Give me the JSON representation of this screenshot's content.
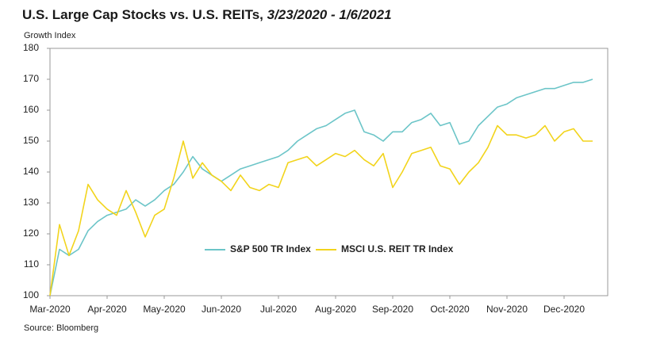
{
  "chart_data": {
    "type": "line",
    "title": "U.S. Large Cap Stocks vs. U.S. REITs, ",
    "title_dates": "3/23/2020 - 1/6/2021",
    "y_label": "Growth Index",
    "source": "Source: Bloomberg",
    "categories": [
      "Mar-2020",
      null,
      null,
      null,
      null,
      null,
      "Apr-2020",
      null,
      null,
      null,
      null,
      null,
      "May-2020",
      null,
      null,
      null,
      null,
      null,
      "Jun-2020",
      null,
      null,
      null,
      null,
      null,
      "Jul-2020",
      null,
      null,
      null,
      null,
      null,
      "Aug-2020",
      null,
      null,
      null,
      null,
      null,
      "Sep-2020",
      null,
      null,
      null,
      null,
      null,
      "Oct-2020",
      null,
      null,
      null,
      null,
      null,
      "Nov-2020",
      null,
      null,
      null,
      null,
      null,
      "Dec-2020",
      null,
      null,
      null
    ],
    "series": [
      {
        "name": "S&P 500 TR Index",
        "color": "#6cc5c8",
        "values": [
          100,
          115,
          113,
          115,
          121,
          124,
          126,
          127,
          128,
          131,
          129,
          131,
          134,
          136,
          140,
          145,
          141,
          139,
          137,
          139,
          141,
          142,
          143,
          144,
          145,
          147,
          150,
          152,
          154,
          155,
          157,
          159,
          160,
          153,
          152,
          150,
          153,
          153,
          156,
          157,
          159,
          155,
          156,
          149,
          150,
          155,
          158,
          161,
          162,
          164,
          165,
          166,
          167,
          167,
          168,
          169,
          169,
          170
        ]
      },
      {
        "name": "MSCI U.S. REIT TR Index",
        "color": "#f2d41c",
        "values": [
          100,
          123,
          113,
          121,
          136,
          131,
          128,
          126,
          134,
          127,
          119,
          126,
          128,
          138,
          150,
          138,
          143,
          139,
          137,
          134,
          139,
          135,
          134,
          136,
          135,
          143,
          144,
          145,
          142,
          144,
          146,
          145,
          147,
          144,
          142,
          146,
          135,
          140,
          146,
          147,
          148,
          142,
          141,
          136,
          140,
          143,
          148,
          155,
          152,
          152,
          151,
          152,
          155,
          150,
          153,
          154,
          150,
          150
        ]
      }
    ],
    "ylim": [
      100,
      180
    ],
    "yticks": [
      100,
      110,
      120,
      130,
      140,
      150,
      160,
      170,
      180
    ],
    "grid": false
  }
}
